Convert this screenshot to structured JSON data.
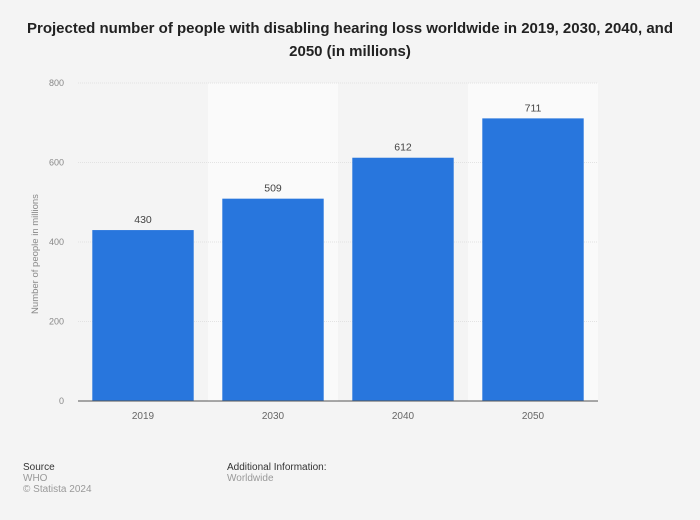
{
  "chart_data": {
    "type": "bar",
    "title": "Projected number of people with disabling hearing loss worldwide in 2019, 2030, 2040, and 2050 (in millions)",
    "categories": [
      "2019",
      "2030",
      "2040",
      "2050"
    ],
    "values": [
      430,
      509,
      612,
      711
    ],
    "xlabel": "",
    "ylabel": "Number of people in millions",
    "ylim": [
      0,
      800
    ],
    "yticks": [
      0,
      200,
      400,
      600,
      800
    ],
    "grid": true,
    "bar_color": "#2876dd",
    "data_labels": [
      "430",
      "509",
      "612",
      "711"
    ]
  },
  "footer": {
    "source_heading": "Source",
    "source": "WHO",
    "copyright": "© Statista 2024",
    "additional_heading": "Additional Information:",
    "additional": "Worldwide"
  }
}
